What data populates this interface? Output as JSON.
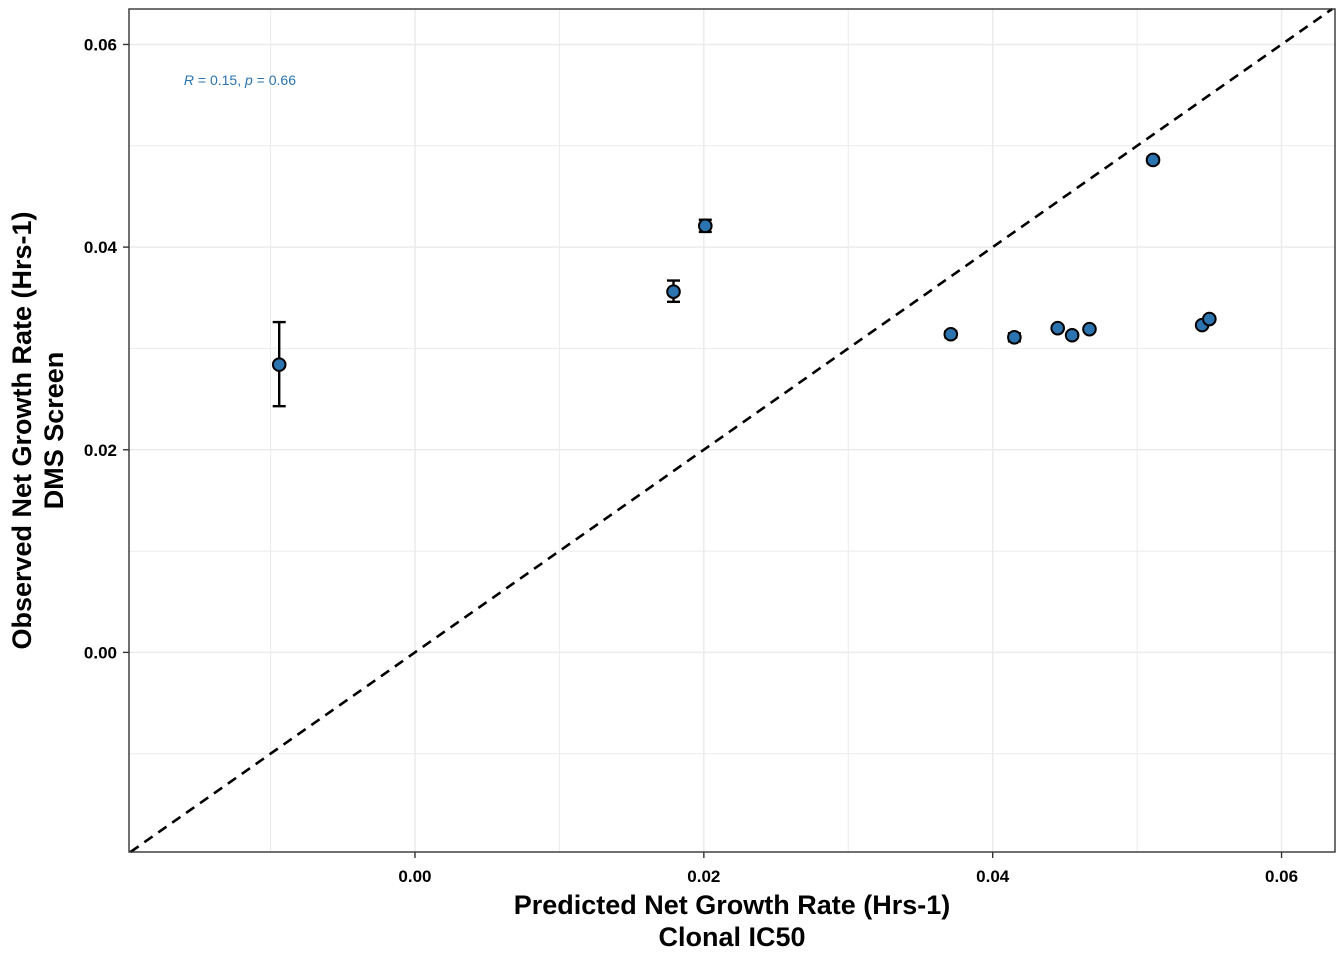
{
  "chart_data": {
    "type": "scatter",
    "xlabel": [
      "Predicted Net Growth Rate (Hrs-1)",
      "Clonal IC50"
    ],
    "ylabel": [
      "Observed Net Growth Rate (Hrs-1)",
      "DMS Screen"
    ],
    "xlim": [
      -0.0198,
      0.0637
    ],
    "ylim": [
      -0.0197,
      0.0635
    ],
    "x_ticks": [
      0.0,
      0.02,
      0.04,
      0.06
    ],
    "x_tick_labels": [
      "0.00",
      "0.02",
      "0.04",
      "0.06"
    ],
    "y_ticks": [
      0.0,
      0.02,
      0.04,
      0.06
    ],
    "y_tick_labels": [
      "0.00",
      "0.02",
      "0.04",
      "0.06"
    ],
    "x_minor": [
      -0.01,
      0.01,
      0.03,
      0.05
    ],
    "y_minor": [
      -0.01,
      0.01,
      0.03,
      0.05
    ],
    "grid": true,
    "reference_line": "y = x (dashed)",
    "annotation": {
      "r_symbol": "R",
      "r_text": " = 0.15, ",
      "p_symbol": "p",
      "p_text": " = 0.66",
      "x": -0.016,
      "y": 0.0565
    },
    "points": [
      {
        "x": -0.0094,
        "y": 0.0284,
        "ylo": 0.0243,
        "yhi": 0.0326
      },
      {
        "x": 0.0179,
        "y": 0.0356,
        "ylo": 0.0346,
        "yhi": 0.0367
      },
      {
        "x": 0.0201,
        "y": 0.0421,
        "ylo": 0.0415,
        "yhi": 0.0427
      },
      {
        "x": 0.0371,
        "y": 0.0314,
        "ylo": 0.0311,
        "yhi": 0.0317
      },
      {
        "x": 0.0415,
        "y": 0.0311,
        "ylo": 0.0307,
        "yhi": 0.0315
      },
      {
        "x": 0.0445,
        "y": 0.032,
        "ylo": 0.0318,
        "yhi": 0.0322
      },
      {
        "x": 0.0455,
        "y": 0.0313,
        "ylo": 0.0311,
        "yhi": 0.0315
      },
      {
        "x": 0.0467,
        "y": 0.0319,
        "ylo": 0.0317,
        "yhi": 0.0321
      },
      {
        "x": 0.0511,
        "y": 0.0486,
        "ylo": 0.0483,
        "yhi": 0.0489
      },
      {
        "x": 0.0545,
        "y": 0.0323,
        "ylo": 0.0321,
        "yhi": 0.0325
      },
      {
        "x": 0.055,
        "y": 0.0329,
        "ylo": 0.0327,
        "yhi": 0.0331
      }
    ],
    "colors": {
      "point_fill": "#2b74b0",
      "point_stroke": "#000000",
      "grid": "#ebebeb",
      "annotation": "#2b74b0"
    }
  }
}
